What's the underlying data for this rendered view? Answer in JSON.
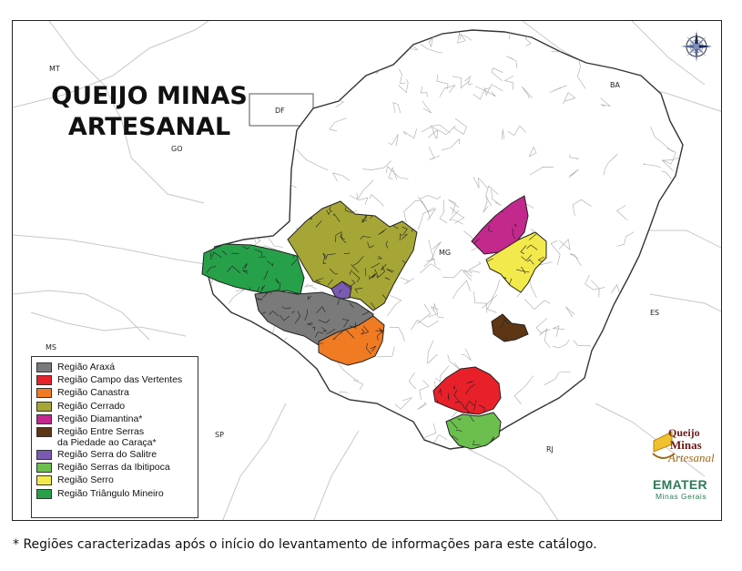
{
  "map": {
    "title_line1": "QUEIJO MINAS",
    "title_line2": "ARTESANAL",
    "state_labels": [
      {
        "name": "MT"
      },
      {
        "name": "DF"
      },
      {
        "name": "GO"
      },
      {
        "name": "BA"
      },
      {
        "name": "MG"
      },
      {
        "name": "ES"
      },
      {
        "name": "MS"
      },
      {
        "name": "SP"
      },
      {
        "name": "RJ"
      }
    ],
    "compass_icon": "compass-rose-icon",
    "colors": {
      "state_fill": "#ffffff",
      "border": "#333333",
      "municipality_lines": "#9a9a9a",
      "neighbor_lines": "#c8c8c8"
    }
  },
  "legend": {
    "items": [
      {
        "label": "Região Araxá",
        "color": "#7a7a7a"
      },
      {
        "label": "Região Campo das Vertentes",
        "color": "#e8202a"
      },
      {
        "label": "Região Canastra",
        "color": "#f07b23"
      },
      {
        "label": "Região Cerrado",
        "color": "#a6a636"
      },
      {
        "label": "Região Diamantina*",
        "color": "#c3288c"
      },
      {
        "label": "Região Entre Serras\nda Piedade ao Caraça*",
        "color": "#5e3614"
      },
      {
        "label": "Região Serra do Salitre",
        "color": "#7a5ab2"
      },
      {
        "label": "Região Serras da Ibitipoca",
        "color": "#6cbf4e"
      },
      {
        "label": "Região Serro",
        "color": "#f2ea4c"
      },
      {
        "label": "Região Triângulo Mineiro",
        "color": "#27a04a"
      }
    ]
  },
  "logos": {
    "queijo_line1": "Queijo",
    "queijo_line2": "Minas",
    "queijo_line3": "Artesanal",
    "emater_line1": "EMATER",
    "emater_line2": "Minas Gerais"
  },
  "footnote": "* Regiões caracterizadas após o início do levantamento de informações para este catálogo."
}
